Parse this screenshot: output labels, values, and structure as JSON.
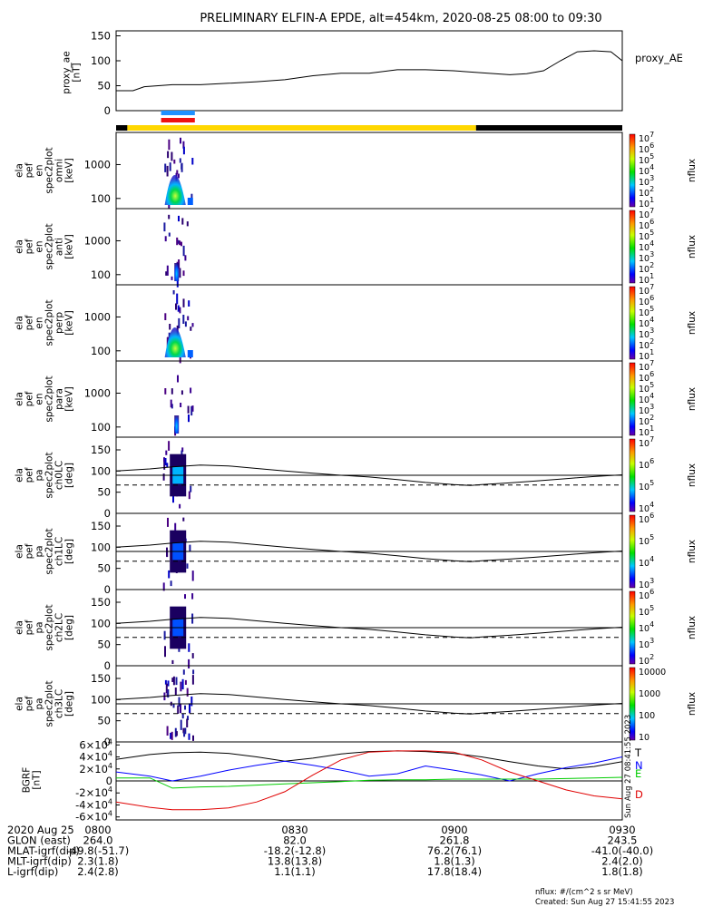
{
  "title": "PRELIMINARY ELFIN-A EPDE, alt=454km, 2020-08-25 08:00 to 09:30",
  "proxy_ae": {
    "ylabel": [
      "proxy_ae",
      "[nT]"
    ],
    "legend": "proxy_AE",
    "yticks": [
      "150",
      "100",
      "50",
      "0"
    ]
  },
  "spectro_panels": [
    {
      "ylabel": [
        "ela",
        "pef",
        "en",
        "spec2plot",
        "omni",
        "[keV]"
      ],
      "yticks": [
        "1000",
        "100"
      ],
      "cb_ticks": [
        "10^7",
        "10^6",
        "10^5",
        "10^4",
        "10^3",
        "10^2",
        "10^1"
      ],
      "cb_label": "nflux"
    },
    {
      "ylabel": [
        "ela",
        "pef",
        "en",
        "spec2plot",
        "anti",
        "[keV]"
      ],
      "yticks": [
        "1000",
        "100"
      ],
      "cb_ticks": [
        "10^7",
        "10^6",
        "10^5",
        "10^4",
        "10^3",
        "10^2",
        "10^1"
      ],
      "cb_label": "nflux"
    },
    {
      "ylabel": [
        "ela",
        "pef",
        "en",
        "spec2plot",
        "perp",
        "[keV]"
      ],
      "yticks": [
        "1000",
        "100"
      ],
      "cb_ticks": [
        "10^7",
        "10^6",
        "10^5",
        "10^4",
        "10^3",
        "10^2",
        "10^1"
      ],
      "cb_label": "nflux"
    },
    {
      "ylabel": [
        "ela",
        "pef",
        "en",
        "spec2plot",
        "para",
        "[keV]"
      ],
      "yticks": [
        "1000",
        "100"
      ],
      "cb_ticks": [
        "10^7",
        "10^6",
        "10^5",
        "10^4",
        "10^3",
        "10^2",
        "10^1"
      ],
      "cb_label": "nflux"
    }
  ],
  "pa_panels": [
    {
      "ylabel": [
        "ela",
        "pef",
        "pa",
        "spec2plot",
        "ch0LC",
        "[deg]"
      ],
      "yticks": [
        "150",
        "100",
        "50",
        "0"
      ],
      "cb_ticks": [
        "10^7",
        "10^6",
        "10^5",
        "10^4"
      ],
      "cb_label": "nflux"
    },
    {
      "ylabel": [
        "ela",
        "pef",
        "pa",
        "spec2plot",
        "ch1LC",
        "[deg]"
      ],
      "yticks": [
        "150",
        "100",
        "50",
        "0"
      ],
      "cb_ticks": [
        "10^6",
        "10^5",
        "10^4",
        "10^3"
      ],
      "cb_label": "nflux"
    },
    {
      "ylabel": [
        "ela",
        "pef",
        "pa",
        "spec2plot",
        "ch2LC",
        "[deg]"
      ],
      "yticks": [
        "150",
        "100",
        "50",
        "0"
      ],
      "cb_ticks": [
        "10^6",
        "10^5",
        "10^4",
        "10^3",
        "10^2"
      ],
      "cb_label": "nflux"
    },
    {
      "ylabel": [
        "ela",
        "pef",
        "pa",
        "spec2plot",
        "ch3LC",
        "[deg]"
      ],
      "yticks": [
        "150",
        "100",
        "50",
        "0"
      ],
      "cb_ticks": [
        "10000",
        "1000",
        "100",
        "10"
      ],
      "cb_label": "nflux"
    }
  ],
  "bgrf": {
    "ylabel": [
      "BGRF",
      "[nT]"
    ],
    "yticks": [
      "6×10^4",
      "4×10^4",
      "2×10^4",
      "0",
      "-2×10^4",
      "-4×10^4",
      "-6×10^4"
    ],
    "legend": [
      "T",
      "N",
      "E",
      "D"
    ],
    "side_note": "Sun Aug 27 08:41:55 2023"
  },
  "colors": {
    "T": "#000000",
    "N": "#0000ff",
    "E": "#00cc00",
    "D": "#e00000",
    "sci_blue": "#1e90ff",
    "sci_red": "#ee1111",
    "sun_yellow": "#ffd700",
    "shadow_black": "#000000"
  },
  "orbit_table": {
    "row_labels": [
      "2020 Aug 25",
      "GLON (east)",
      "MLAT-igrf(dip)",
      "MLT-igrf(dip)",
      "L-igrf(dip)"
    ],
    "columns": [
      [
        "0800",
        "264.0",
        "-49.8(-51.7)",
        "2.3(1.8)",
        "2.4(2.8)"
      ],
      [
        "0830",
        "82.0",
        "-18.2(-12.8)",
        "13.8(13.8)",
        "1.1(1.1)"
      ],
      [
        "0900",
        "261.8",
        "76.2(76.1)",
        "1.8(1.3)",
        "17.8(18.4)"
      ],
      [
        "0930",
        "243.5",
        "-41.0(-40.0)",
        "2.4(2.0)",
        "1.8(1.8)"
      ]
    ]
  },
  "footer": [
    "nflux: #/(cm^2 s sr MeV)",
    "Created: Sun Aug 27 15:41:55 2023"
  ],
  "chart_data": {
    "type": "line",
    "time_range": [
      "08:00",
      "09:30"
    ],
    "proxy_ae": {
      "x": [
        "08:00",
        "08:03",
        "08:05",
        "08:10",
        "08:15",
        "08:20",
        "08:25",
        "08:30",
        "08:35",
        "08:40",
        "08:45",
        "08:50",
        "08:55",
        "09:00",
        "09:05",
        "09:10",
        "09:13",
        "09:16",
        "09:19",
        "09:22",
        "09:25",
        "09:28",
        "09:30"
      ],
      "y": [
        40,
        40,
        48,
        52,
        52,
        55,
        58,
        62,
        70,
        75,
        75,
        82,
        82,
        80,
        76,
        72,
        74,
        80,
        100,
        118,
        120,
        118,
        100
      ],
      "ylim": [
        0,
        160
      ]
    },
    "sun_shadow_bar": [
      {
        "from": "08:00",
        "to": "08:02",
        "state": "shadow"
      },
      {
        "from": "08:02",
        "to": "09:04",
        "state": "sunlit"
      },
      {
        "from": "09:04",
        "to": "09:30",
        "state": "shadow"
      }
    ],
    "science_zone": {
      "from": "08:08",
      "to": "08:14"
    },
    "lc_angle_deg": {
      "x": [
        "08:00",
        "08:06",
        "08:10",
        "08:15",
        "08:20",
        "08:25",
        "08:30",
        "08:35",
        "08:40",
        "08:45",
        "08:50",
        "08:55",
        "09:00",
        "09:03",
        "09:05",
        "09:10",
        "09:15",
        "09:20",
        "09:25",
        "09:30"
      ],
      "y": [
        100,
        105,
        110,
        114,
        112,
        106,
        100,
        95,
        90,
        86,
        80,
        73,
        68,
        66,
        68,
        72,
        77,
        82,
        87,
        91
      ]
    },
    "alc_angle_deg": 67,
    "ref_90_deg": 90,
    "spectro_activity": {
      "from": "08:08",
      "to": "08:14",
      "energy_peak_keV": 250,
      "energy_floor_keV": 80
    },
    "bgrf_nT": {
      "x": [
        "08:00",
        "08:06",
        "08:10",
        "08:15",
        "08:20",
        "08:25",
        "08:30",
        "08:35",
        "08:40",
        "08:45",
        "08:50",
        "08:55",
        "09:00",
        "09:05",
        "09:10",
        "09:15",
        "09:20",
        "09:25",
        "09:30"
      ],
      "T": [
        36000,
        44000,
        47000,
        48000,
        46000,
        40000,
        33000,
        38000,
        45000,
        49000,
        50000,
        49000,
        46000,
        40000,
        32000,
        25000,
        20000,
        24000,
        32000
      ],
      "N": [
        15000,
        8000,
        0,
        8000,
        18000,
        26000,
        33000,
        26000,
        18000,
        8000,
        12000,
        25000,
        18000,
        10000,
        0,
        12000,
        22000,
        30000,
        40000
      ],
      "E": [
        5000,
        5000,
        -12000,
        -10000,
        -9000,
        -7000,
        -5000,
        -3000,
        -1000,
        1000,
        2000,
        2000,
        3000,
        3000,
        3000,
        3000,
        4000,
        5000,
        6000
      ],
      "D": [
        -35000,
        -44000,
        -48000,
        -48000,
        -45000,
        -35000,
        -18000,
        10000,
        35000,
        48000,
        50000,
        50000,
        48000,
        35000,
        15000,
        0,
        -15000,
        -25000,
        -30000
      ],
      "ylim": [
        -65000,
        65000
      ]
    }
  }
}
